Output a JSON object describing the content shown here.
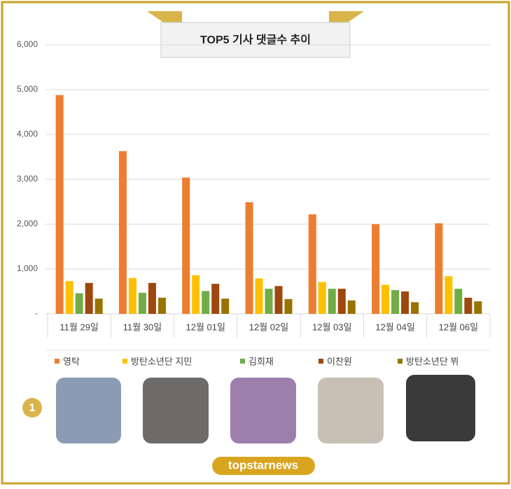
{
  "chart_data": {
    "type": "bar",
    "title": "TOP5 기사 댓글수 추이",
    "categories": [
      "11월 29일",
      "11월 30일",
      "12월 01일",
      "12월 02일",
      "12월 03일",
      "12월 04일",
      "12월 06일"
    ],
    "series": [
      {
        "name": "영탁",
        "color": "#ED7D31",
        "values": [
          4880,
          3630,
          3040,
          2490,
          2220,
          2000,
          2020
        ]
      },
      {
        "name": "방탄소년단 지민",
        "color": "#FFC000",
        "values": [
          730,
          800,
          860,
          790,
          710,
          650,
          840
        ]
      },
      {
        "name": "김희재",
        "color": "#70AD47",
        "values": [
          460,
          470,
          510,
          560,
          560,
          530,
          560
        ]
      },
      {
        "name": "이찬원",
        "color": "#9E480E",
        "values": [
          690,
          690,
          670,
          620,
          560,
          500,
          360
        ]
      },
      {
        "name": "방탄소년단 뷔",
        "color": "#997300",
        "values": [
          340,
          360,
          340,
          330,
          300,
          260,
          280
        ]
      }
    ],
    "ylim": [
      0,
      6000
    ],
    "yticks": [
      {
        "value": 0,
        "label": "-"
      },
      {
        "value": 1000,
        "label": "1,000"
      },
      {
        "value": 2000,
        "label": "2,000"
      },
      {
        "value": 3000,
        "label": "3,000"
      },
      {
        "value": 4000,
        "label": "4,000"
      },
      {
        "value": 5000,
        "label": "5,000"
      },
      {
        "value": 6000,
        "label": "6,000"
      }
    ],
    "grid": true
  },
  "rank_badge": "1",
  "logo": "topstarnews"
}
